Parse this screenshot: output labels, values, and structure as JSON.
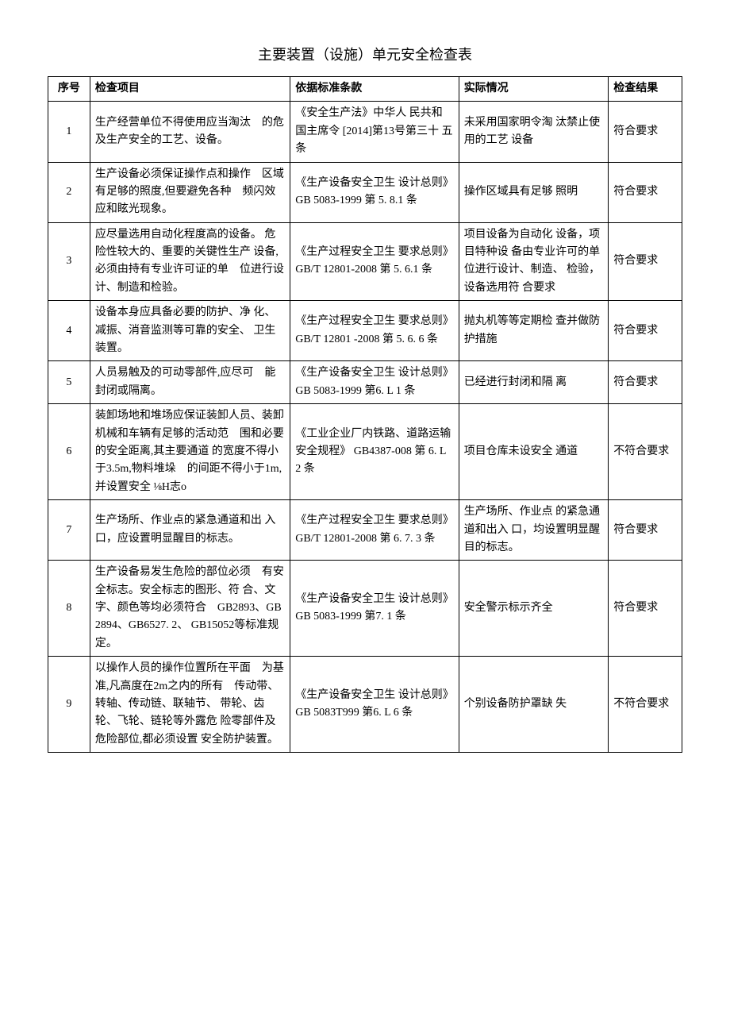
{
  "title": "主要装置（设施）单元安全检查表",
  "columns": {
    "seq": "序号",
    "item": "检查项目",
    "basis": "依据标准条款",
    "actual": "实际情况",
    "result": "检查结果"
  },
  "rows": [
    {
      "seq": "1",
      "item": "生产经营单位不得使用应当淘汰　的危及生产安全的工艺、设备。",
      "basis": "《安全生产法》中华人 民共和国主席令 [2014]第13号第三十 五条",
      "actual": "未采用国家明令淘 汰禁止使用的工艺 设备",
      "result": "符合要求"
    },
    {
      "seq": "2",
      "item": "生产设备必须保证操作点和操作　区域有足够的照度,但要避免各种　频闪效应和眩光现象。",
      "basis": "《生产设备安全卫生 设计总则》GB 5083-1999 第 5. 8.1 条",
      "actual": "操作区域具有足够 照明",
      "result": "符合要求"
    },
    {
      "seq": "3",
      "item": "应尽量选用自动化程度高的设备。 危险性较大的、重要的关键性生产 设备,必须由持有专业许可证的单　位进行设计、制造和检验。",
      "basis": "《生产过程安全卫生 要求总则》GB/T 12801-2008 第 5. 6.1 条",
      "actual": "项目设备为自动化 设备，项目特种设 备由专业许可的单 位进行设计、制造、 检验，设备选用符 合要求",
      "result": "符合要求"
    },
    {
      "seq": "4",
      "item": "设备本身应具备必要的防护、净 化、减振、消音监测等可靠的安全、 卫生装置。",
      "basis": "《生产过程安全卫生 要求总则》GB/T 12801 -2008 第 5. 6. 6 条",
      "actual": "抛丸机等等定期检 查并做防护措施",
      "result": "符合要求"
    },
    {
      "seq": "5",
      "item": "人员易触及的可动零部件,应尽可　能封闭或隔离。",
      "basis": "《生产设备安全卫生 设计总则》GB 5083-1999 第6. L 1 条",
      "actual": "已经进行封闭和隔 离",
      "result": "符合要求"
    },
    {
      "seq": "6",
      "item": "装卸场地和堆场应保证装卸人员、装卸机械和车辆有足够的活动范　围和必要的安全距离,其主要通道 的宽度不得小于3.5m,物料堆垛　的间距不得小于1m,并设置安全 ⅛H志o",
      "basis": "《工业企业厂内铁路、道路运输安全规程》 GB4387-008 第 6. L 2 条",
      "actual": "项目仓库未设安全 通道",
      "result": "不符合要求"
    },
    {
      "seq": "7",
      "item": "生产场所、作业点的紧急通道和出 入口，应设置明显醒目的标志。",
      "basis": "《生产过程安全卫生 要求总则》GB/T 12801-2008 第 6. 7. 3 条",
      "actual": "生产场所、作业点 的紧急通道和出入 口，均设置明显醒 目的标志。",
      "result": "符合要求"
    },
    {
      "seq": "8",
      "item": "生产设备易发生危险的部位必须　有安全标志。安全标志的图形、符 合、文字、颜色等均必须符合　GB2893、GB2894、GB6527. 2、 GB15052等标准规定。",
      "basis": "《生产设备安全卫生 设计总则》GB 5083-1999 第7. 1 条",
      "actual": "安全警示标示齐全",
      "result": "符合要求"
    },
    {
      "seq": "9",
      "item": "以操作人员的操作位置所在平面　为基准,凡高度在2m之内的所有　传动带、转轴、传动链、联轴节、 带轮、齿轮、飞轮、链轮等外露危 险零部件及危险部位,都必须设置 安全防护装置。",
      "basis": "《生产设备安全卫生 设计总则》GB 5083T999 第6. L 6 条",
      "actual": "个别设备防护罩缺 失",
      "result": "不符合要求"
    }
  ]
}
